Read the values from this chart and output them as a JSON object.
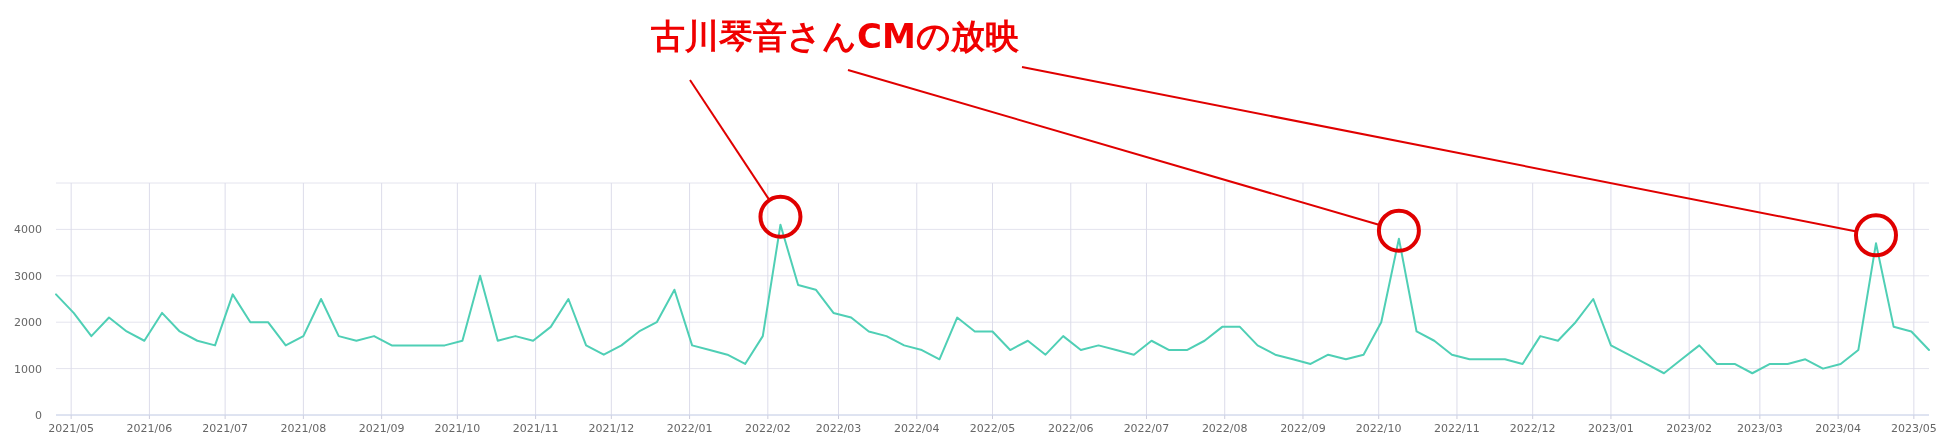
{
  "chart_data": {
    "type": "line",
    "title": "古川琴音さんCMの放映",
    "x": [
      "2021-04-25",
      "2021-05-02",
      "2021-05-09",
      "2021-05-16",
      "2021-05-23",
      "2021-05-30",
      "2021-06-06",
      "2021-06-13",
      "2021-06-20",
      "2021-06-27",
      "2021-07-04",
      "2021-07-11",
      "2021-07-18",
      "2021-07-25",
      "2021-08-01",
      "2021-08-08",
      "2021-08-15",
      "2021-08-22",
      "2021-08-29",
      "2021-09-05",
      "2021-09-12",
      "2021-09-19",
      "2021-09-26",
      "2021-10-03",
      "2021-10-10",
      "2021-10-17",
      "2021-10-24",
      "2021-10-31",
      "2021-11-07",
      "2021-11-14",
      "2021-11-21",
      "2021-11-28",
      "2021-12-05",
      "2021-12-12",
      "2021-12-19",
      "2021-12-26",
      "2022-01-02",
      "2022-01-09",
      "2022-01-16",
      "2022-01-23",
      "2022-01-30",
      "2022-02-06",
      "2022-02-13",
      "2022-02-20",
      "2022-02-27",
      "2022-03-06",
      "2022-03-13",
      "2022-03-20",
      "2022-03-27",
      "2022-04-03",
      "2022-04-10",
      "2022-04-17",
      "2022-04-24",
      "2022-05-01",
      "2022-05-08",
      "2022-05-15",
      "2022-05-22",
      "2022-05-29",
      "2022-06-05",
      "2022-06-12",
      "2022-06-19",
      "2022-06-26",
      "2022-07-03",
      "2022-07-10",
      "2022-07-17",
      "2022-07-24",
      "2022-07-31",
      "2022-08-07",
      "2022-08-14",
      "2022-08-21",
      "2022-08-28",
      "2022-09-04",
      "2022-09-11",
      "2022-09-18",
      "2022-09-25",
      "2022-10-02",
      "2022-10-09",
      "2022-10-16",
      "2022-10-23",
      "2022-10-30",
      "2022-11-06",
      "2022-11-13",
      "2022-11-20",
      "2022-11-27",
      "2022-12-04",
      "2022-12-11",
      "2022-12-18",
      "2022-12-25",
      "2023-01-01",
      "2023-01-08",
      "2023-01-15",
      "2023-01-22",
      "2023-01-29",
      "2023-02-05",
      "2023-02-12",
      "2023-02-19",
      "2023-02-26",
      "2023-03-05",
      "2023-03-12",
      "2023-03-19",
      "2023-03-26",
      "2023-04-02",
      "2023-04-09",
      "2023-04-16",
      "2023-04-23",
      "2023-04-30",
      "2023-05-07"
    ],
    "series": [
      {
        "color": "#4fcfb5",
        "values": [
          2600,
          2200,
          1700,
          2100,
          1800,
          1600,
          2200,
          1800,
          1600,
          1500,
          2600,
          2000,
          2000,
          1500,
          1700,
          2500,
          1700,
          1600,
          1700,
          1500,
          1500,
          1500,
          1500,
          1600,
          3000,
          1600,
          1700,
          1600,
          1900,
          2500,
          1500,
          1300,
          1500,
          1800,
          2000,
          2700,
          1500,
          1400,
          1300,
          1100,
          1700,
          4100,
          2800,
          2700,
          2200,
          2100,
          1800,
          1700,
          1500,
          1400,
          1200,
          2100,
          1800,
          1800,
          1400,
          1600,
          1300,
          1700,
          1400,
          1500,
          1400,
          1300,
          1600,
          1400,
          1400,
          1600,
          1900,
          1900,
          1500,
          1300,
          1200,
          1100,
          1300,
          1200,
          1300,
          2000,
          3800,
          1800,
          1600,
          1300,
          1200,
          1200,
          1200,
          1100,
          1700,
          1600,
          2000,
          2500,
          1500,
          1300,
          1100,
          900,
          1200,
          1500,
          1100,
          1100,
          900,
          1100,
          1100,
          1200,
          1000,
          1100,
          1400,
          3700,
          1900,
          1800,
          1400
        ]
      }
    ],
    "xlim": [
      "2021-04-25",
      "2023-05-07"
    ],
    "xticks": [
      {
        "value": "2021-05-01",
        "label": "2021/05"
      },
      {
        "value": "2021-06-01",
        "label": "2021/06"
      },
      {
        "value": "2021-07-01",
        "label": "2021/07"
      },
      {
        "value": "2021-08-01",
        "label": "2021/08"
      },
      {
        "value": "2021-09-01",
        "label": "2021/09"
      },
      {
        "value": "2021-10-01",
        "label": "2021/10"
      },
      {
        "value": "2021-11-01",
        "label": "2021/11"
      },
      {
        "value": "2021-12-01",
        "label": "2021/12"
      },
      {
        "value": "2022-01-01",
        "label": "2022/01"
      },
      {
        "value": "2022-02-01",
        "label": "2022/02"
      },
      {
        "value": "2022-03-01",
        "label": "2022/03"
      },
      {
        "value": "2022-04-01",
        "label": "2022/04"
      },
      {
        "value": "2022-05-01",
        "label": "2022/05"
      },
      {
        "value": "2022-06-01",
        "label": "2022/06"
      },
      {
        "value": "2022-07-01",
        "label": "2022/07"
      },
      {
        "value": "2022-08-01",
        "label": "2022/08"
      },
      {
        "value": "2022-09-01",
        "label": "2022/09"
      },
      {
        "value": "2022-10-01",
        "label": "2022/10"
      },
      {
        "value": "2022-11-01",
        "label": "2022/11"
      },
      {
        "value": "2022-12-01",
        "label": "2022/12"
      },
      {
        "value": "2023-01-01",
        "label": "2023/01"
      },
      {
        "value": "2023-02-01",
        "label": "2023/02"
      },
      {
        "value": "2023-03-01",
        "label": "2023/03"
      },
      {
        "value": "2023-04-01",
        "label": "2023/04"
      },
      {
        "value": "2023-05-01",
        "label": "2023/05"
      }
    ],
    "ylim": [
      0,
      5000
    ],
    "yticks": [
      0,
      1000,
      2000,
      3000,
      4000,
      {
        "value": 5000,
        "label": null
      }
    ],
    "grid": true
  }
}
